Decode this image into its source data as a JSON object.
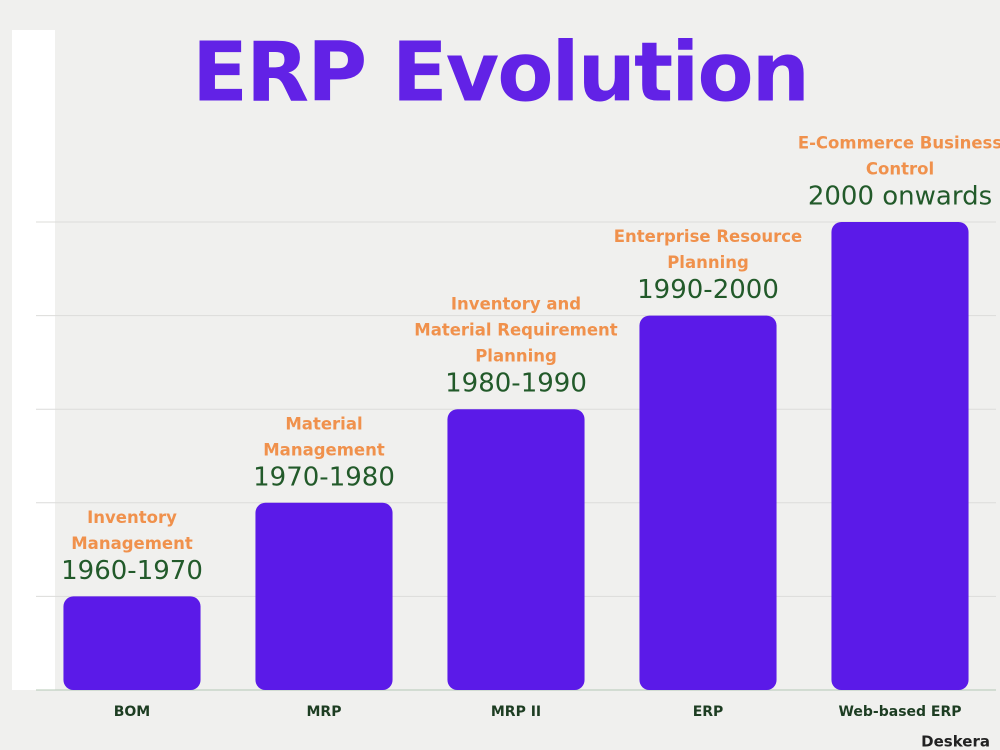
{
  "chart_data": {
    "type": "bar",
    "title": "ERP Evolution",
    "categories": [
      "BOM",
      "MRP",
      "MRP II",
      "ERP",
      "Web-based ERP"
    ],
    "values": [
      1,
      2,
      3,
      4,
      5
    ],
    "periods": [
      "1960-1970",
      "1970-1980",
      "1980-1990",
      "1990-2000",
      "2000 onwards"
    ],
    "descriptions": [
      [
        "Inventory",
        "Management"
      ],
      [
        "Material",
        "Management"
      ],
      [
        "Inventory and",
        "Material Requirement",
        "Planning"
      ],
      [
        "Enterprise Resource",
        "Planning"
      ],
      [
        "E-Commerce Business",
        "Control"
      ]
    ],
    "color": "#5b1ae8",
    "ylim": [
      0,
      5
    ],
    "yticks": [
      1,
      2,
      3,
      4,
      5
    ],
    "grid": true
  },
  "brand": "Deskera"
}
